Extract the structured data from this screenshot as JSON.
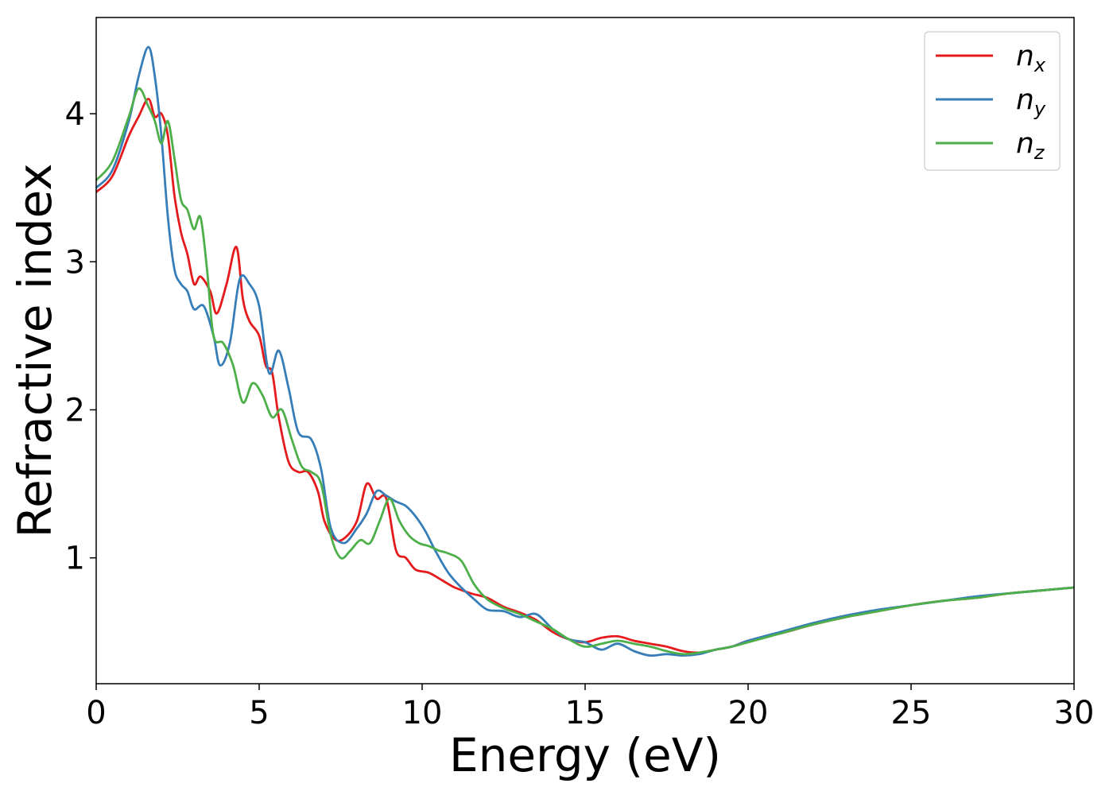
{
  "chart_data": {
    "type": "line",
    "title": "",
    "xlabel": "Energy (eV)",
    "ylabel": "Refractive index",
    "xlim": [
      0,
      30
    ],
    "ylim": [
      0.15,
      4.65
    ],
    "xticks": [
      0,
      5,
      10,
      15,
      20,
      25,
      30
    ],
    "yticks": [
      1,
      2,
      3,
      4
    ],
    "grid": false,
    "legend_position": "top-right",
    "series": [
      {
        "name": "n",
        "subscript": "x",
        "color": "#e41a1c",
        "x": [
          0,
          0.5,
          1.0,
          1.3,
          1.6,
          1.8,
          2.0,
          2.2,
          2.4,
          2.6,
          2.8,
          3.0,
          3.2,
          3.5,
          3.7,
          4.0,
          4.3,
          4.5,
          4.7,
          5.0,
          5.2,
          5.4,
          5.6,
          5.9,
          6.2,
          6.5,
          6.8,
          7.0,
          7.3,
          7.6,
          8.0,
          8.3,
          8.6,
          8.9,
          9.2,
          9.5,
          9.8,
          10.2,
          10.6,
          11.0,
          11.5,
          12.0,
          12.5,
          13.0,
          13.5,
          14.0,
          14.5,
          15.0,
          15.5,
          16.0,
          16.5,
          17.0,
          17.5,
          18.0,
          18.5,
          19.0,
          19.5,
          20.0,
          21.0,
          22.0,
          23.0,
          24.0,
          25.0,
          26.0,
          27.0,
          28.0,
          29.0,
          30.0
        ],
        "y": [
          3.47,
          3.58,
          3.85,
          3.98,
          4.1,
          3.98,
          4.0,
          3.85,
          3.45,
          3.2,
          3.05,
          2.85,
          2.9,
          2.8,
          2.65,
          2.85,
          3.1,
          2.75,
          2.6,
          2.5,
          2.3,
          2.25,
          1.95,
          1.65,
          1.58,
          1.58,
          1.45,
          1.25,
          1.13,
          1.13,
          1.25,
          1.5,
          1.4,
          1.4,
          1.05,
          1.0,
          0.92,
          0.9,
          0.85,
          0.8,
          0.76,
          0.73,
          0.67,
          0.63,
          0.58,
          0.5,
          0.45,
          0.43,
          0.46,
          0.47,
          0.44,
          0.42,
          0.4,
          0.37,
          0.36,
          0.38,
          0.4,
          0.44,
          0.49,
          0.55,
          0.6,
          0.64,
          0.68,
          0.71,
          0.73,
          0.76,
          0.78,
          0.8
        ]
      },
      {
        "name": "n",
        "subscript": "y",
        "color": "#377eb8",
        "x": [
          0,
          0.5,
          1.0,
          1.3,
          1.6,
          1.8,
          2.0,
          2.2,
          2.4,
          2.6,
          2.8,
          3.0,
          3.3,
          3.6,
          3.8,
          4.1,
          4.4,
          4.7,
          5.0,
          5.3,
          5.6,
          5.9,
          6.2,
          6.6,
          6.9,
          7.2,
          7.6,
          8.0,
          8.3,
          8.6,
          8.9,
          9.2,
          9.5,
          9.8,
          10.1,
          10.4,
          10.8,
          11.2,
          11.6,
          12.0,
          12.5,
          13.0,
          13.5,
          14.0,
          14.5,
          15.0,
          15.5,
          16.0,
          16.5,
          17.0,
          17.5,
          18.0,
          18.5,
          19.0,
          19.5,
          20.0,
          21.0,
          22.0,
          23.0,
          24.0,
          25.0,
          26.0,
          27.0,
          28.0,
          29.0,
          30.0
        ],
        "y": [
          3.5,
          3.62,
          3.95,
          4.25,
          4.45,
          4.25,
          3.85,
          3.3,
          2.95,
          2.85,
          2.8,
          2.68,
          2.7,
          2.5,
          2.3,
          2.45,
          2.88,
          2.85,
          2.7,
          2.25,
          2.4,
          2.15,
          1.85,
          1.8,
          1.6,
          1.2,
          1.1,
          1.2,
          1.3,
          1.45,
          1.42,
          1.38,
          1.35,
          1.28,
          1.18,
          1.05,
          0.9,
          0.8,
          0.72,
          0.65,
          0.64,
          0.6,
          0.62,
          0.52,
          0.45,
          0.43,
          0.38,
          0.42,
          0.37,
          0.34,
          0.35,
          0.34,
          0.35,
          0.38,
          0.4,
          0.44,
          0.5,
          0.56,
          0.61,
          0.65,
          0.68,
          0.71,
          0.74,
          0.76,
          0.78,
          0.8
        ]
      },
      {
        "name": "n",
        "subscript": "z",
        "color": "#4daf4a",
        "x": [
          0,
          0.5,
          1.0,
          1.3,
          1.6,
          1.8,
          2.0,
          2.2,
          2.4,
          2.6,
          2.8,
          3.0,
          3.2,
          3.4,
          3.6,
          3.9,
          4.2,
          4.5,
          4.8,
          5.1,
          5.4,
          5.7,
          6.0,
          6.3,
          6.6,
          6.9,
          7.2,
          7.5,
          7.8,
          8.1,
          8.4,
          8.7,
          9.0,
          9.3,
          9.6,
          9.9,
          10.2,
          10.5,
          10.8,
          11.2,
          11.6,
          12.0,
          12.5,
          13.0,
          13.5,
          14.0,
          14.5,
          15.0,
          15.5,
          16.0,
          16.5,
          17.0,
          17.5,
          18.0,
          18.5,
          19.0,
          19.5,
          20.0,
          21.0,
          22.0,
          23.0,
          24.0,
          25.0,
          26.0,
          27.0,
          28.0,
          29.0,
          30.0
        ],
        "y": [
          3.55,
          3.68,
          3.98,
          4.17,
          4.05,
          3.95,
          3.8,
          3.95,
          3.7,
          3.42,
          3.35,
          3.22,
          3.3,
          2.95,
          2.5,
          2.45,
          2.3,
          2.05,
          2.18,
          2.1,
          1.95,
          2.0,
          1.8,
          1.62,
          1.58,
          1.5,
          1.15,
          1.0,
          1.05,
          1.12,
          1.1,
          1.25,
          1.4,
          1.25,
          1.15,
          1.1,
          1.08,
          1.05,
          1.03,
          0.98,
          0.82,
          0.72,
          0.66,
          0.62,
          0.57,
          0.52,
          0.45,
          0.4,
          0.42,
          0.44,
          0.42,
          0.4,
          0.37,
          0.35,
          0.36,
          0.38,
          0.4,
          0.43,
          0.49,
          0.55,
          0.6,
          0.64,
          0.68,
          0.71,
          0.73,
          0.76,
          0.78,
          0.8
        ]
      }
    ]
  }
}
